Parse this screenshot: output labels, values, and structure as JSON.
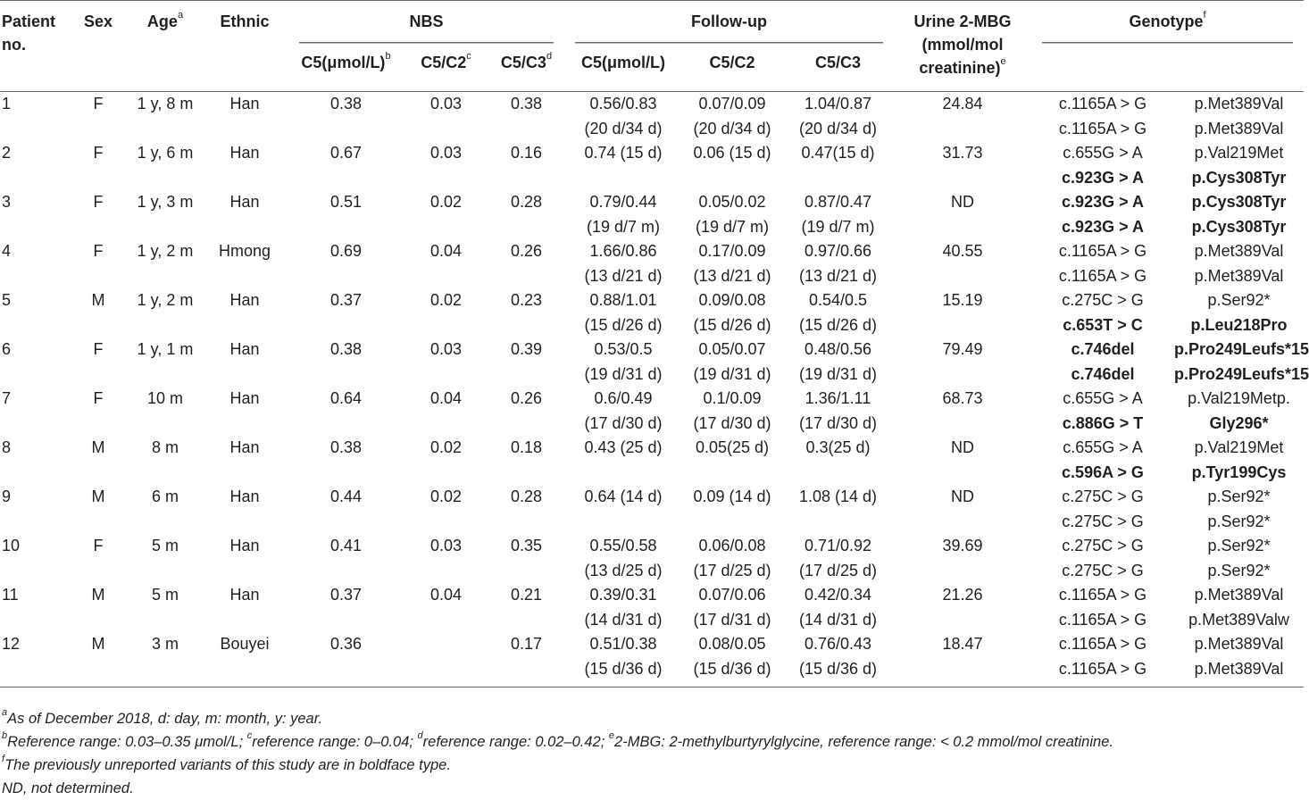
{
  "headers": {
    "patient_no": "Patient no.",
    "sex": "Sex",
    "age": "Age",
    "age_sup": "a",
    "ethnic": "Ethnic",
    "nbs": "NBS",
    "followup": "Follow-up",
    "urine_l1": "Urine 2-MBG",
    "urine_l2": "(mmol/mol",
    "urine_l3": "creatinine)",
    "urine_sup": "e",
    "genotype": "Genotype",
    "genotype_sup": "f",
    "nbs_c5": "C5(μmol/L)",
    "nbs_c5_sup": "b",
    "nbs_c5c2": "C5/C2",
    "nbs_c5c2_sup": "c",
    "nbs_c5c3": "C5/C3",
    "nbs_c5c3_sup": "d",
    "fu_c5": "C5(μmol/L)",
    "fu_c5c2": "C5/C2",
    "fu_c5c3": "C5/C3"
  },
  "rows": [
    [
      "1",
      "F",
      "1 y, 8 m",
      "Han",
      "0.38",
      "0.03",
      "0.38",
      "0.56/0.83",
      "0.07/0.09",
      "1.04/0.87",
      "24.84",
      "c.1165A > G",
      "p.Met389Val"
    ],
    [
      "",
      "",
      "",
      "",
      "",
      "",
      "",
      "(20 d/34 d)",
      "(20 d/34 d)",
      "(20 d/34 d)",
      "",
      "c.1165A > G",
      "p.Met389Val"
    ],
    [
      "2",
      "F",
      "1 y, 6 m",
      "Han",
      "0.67",
      "0.03",
      "0.16",
      "0.74 (15 d)",
      "0.06 (15 d)",
      "0.47(15 d)",
      "31.73",
      "c.655G > A",
      "p.Val219Met"
    ],
    [
      "",
      "",
      "",
      "",
      "",
      "",
      "",
      "",
      "",
      "",
      "",
      "c.923G > A",
      "p.Cys308Tyr"
    ],
    [
      "3",
      "F",
      "1 y, 3 m",
      "Han",
      "0.51",
      "0.02",
      "0.28",
      "0.79/0.44",
      "0.05/0.02",
      "0.87/0.47",
      "ND",
      "c.923G > A",
      "p.Cys308Tyr"
    ],
    [
      "",
      "",
      "",
      "",
      "",
      "",
      "",
      "(19 d/7 m)",
      "(19 d/7 m)",
      "(19 d/7 m)",
      "",
      "c.923G > A",
      "p.Cys308Tyr"
    ],
    [
      "4",
      "F",
      "1 y, 2 m",
      "Hmong",
      "0.69",
      "0.04",
      "0.26",
      "1.66/0.86",
      "0.17/0.09",
      "0.97/0.66",
      "40.55",
      "c.1165A > G",
      "p.Met389Val"
    ],
    [
      "",
      "",
      "",
      "",
      "",
      "",
      "",
      "(13 d/21 d)",
      "(13 d/21 d)",
      "(13 d/21 d)",
      "",
      "c.1165A > G",
      "p.Met389Val"
    ],
    [
      "5",
      "M",
      "1 y, 2 m",
      "Han",
      "0.37",
      "0.02",
      "0.23",
      "0.88/1.01",
      "0.09/0.08",
      "0.54/0.5",
      "15.19",
      "c.275C > G",
      "p.Ser92*"
    ],
    [
      "",
      "",
      "",
      "",
      "",
      "",
      "",
      "(15 d/26 d)",
      "(15 d/26 d)",
      "(15 d/26 d)",
      "",
      "c.653T > C",
      "p.Leu218Pro"
    ],
    [
      "6",
      "F",
      "1 y, 1 m",
      "Han",
      "0.38",
      "0.03",
      "0.39",
      "0.53/0.5",
      "0.05/0.07",
      "0.48/0.56",
      "79.49",
      "c.746del",
      "p.Pro249Leufs*15"
    ],
    [
      "",
      "",
      "",
      "",
      "",
      "",
      "",
      "(19 d/31 d)",
      "(19 d/31 d)",
      "(19 d/31 d)",
      "",
      "c.746del",
      "p.Pro249Leufs*15"
    ],
    [
      "7",
      "F",
      "10 m",
      "Han",
      "0.64",
      "0.04",
      "0.26",
      "0.6/0.49",
      "0.1/0.09",
      "1.36/1.11",
      "68.73",
      "c.655G > A",
      "p.Val219Metp."
    ],
    [
      "",
      "",
      "",
      "",
      "",
      "",
      "",
      "(17 d/30 d)",
      "(17 d/30 d)",
      "(17 d/30 d)",
      "",
      "c.886G > T",
      "Gly296*"
    ],
    [
      "8",
      "M",
      "8 m",
      "Han",
      "0.38",
      "0.02",
      "0.18",
      "0.43 (25 d)",
      "0.05(25 d)",
      "0.3(25 d)",
      "ND",
      "c.655G > A",
      "p.Val219Met"
    ],
    [
      "",
      "",
      "",
      "",
      "",
      "",
      "",
      "",
      "",
      "",
      "",
      "c.596A > G",
      "p.Tyr199Cys"
    ],
    [
      "9",
      "M",
      "6 m",
      "Han",
      "0.44",
      "0.02",
      "0.28",
      "0.64 (14 d)",
      "0.09 (14 d)",
      "1.08 (14 d)",
      "ND",
      "c.275C > G",
      "p.Ser92*"
    ],
    [
      "",
      "",
      "",
      "",
      "",
      "",
      "",
      "",
      "",
      "",
      "",
      "c.275C > G",
      "p.Ser92*"
    ],
    [
      "10",
      "F",
      "5 m",
      "Han",
      "0.41",
      "0.03",
      "0.35",
      "0.55/0.58",
      "0.06/0.08",
      "0.71/0.92",
      "39.69",
      "c.275C > G",
      "p.Ser92*"
    ],
    [
      "",
      "",
      "",
      "",
      "",
      "",
      "",
      "(13 d/25 d)",
      "(17 d/25 d)",
      "(17 d/25 d)",
      "",
      "c.275C > G",
      "p.Ser92*"
    ],
    [
      "11",
      "M",
      "5 m",
      "Han",
      "0.37",
      "0.04",
      "0.21",
      "0.39/0.31",
      "0.07/0.06",
      "0.42/0.34",
      "21.26",
      "c.1165A > G",
      "p.Met389Val"
    ],
    [
      "",
      "",
      "",
      "",
      "",
      "",
      "",
      "(14 d/31 d)",
      "(17 d/31 d)",
      "(14 d/31 d)",
      "",
      "c.1165A > G",
      "p.Met389Valw"
    ],
    [
      "12",
      "M",
      "3 m",
      "Bouyei",
      "0.36",
      "",
      "0.17",
      "0.51/0.38",
      "0.08/0.05",
      "0.76/0.43",
      "18.47",
      "c.1165A > G",
      "p.Met389Val"
    ],
    [
      "",
      "",
      "",
      "",
      "",
      "",
      "",
      "(15 d/36 d)",
      "(15 d/36 d)",
      "(15 d/36 d)",
      "",
      "c.1165A > G",
      "p.Met389Val"
    ]
  ],
  "bold_genotype_rows": [
    3,
    4,
    5,
    9,
    10,
    11,
    13,
    15
  ],
  "footnotes": [
    {
      "sup": "a",
      "text": "As of December 2018, d: day, m: month, y: year."
    },
    {
      "sup": "b",
      "text": "Reference range: 0.03–0.35 μmol/L; ",
      "sup2": "c",
      "text2": "reference range: 0–0.04; ",
      "sup3": "d",
      "text3": "reference range: 0.02–0.42; ",
      "sup4": "e",
      "text4": "2-MBG: 2-methylburtyrylglycine, reference range: < 0.2 mmol/mol creatinine."
    },
    {
      "sup": "f",
      "text": "The previously unreported variants of this study are in boldface type."
    },
    {
      "sup": "",
      "text": "ND, not determined."
    }
  ]
}
